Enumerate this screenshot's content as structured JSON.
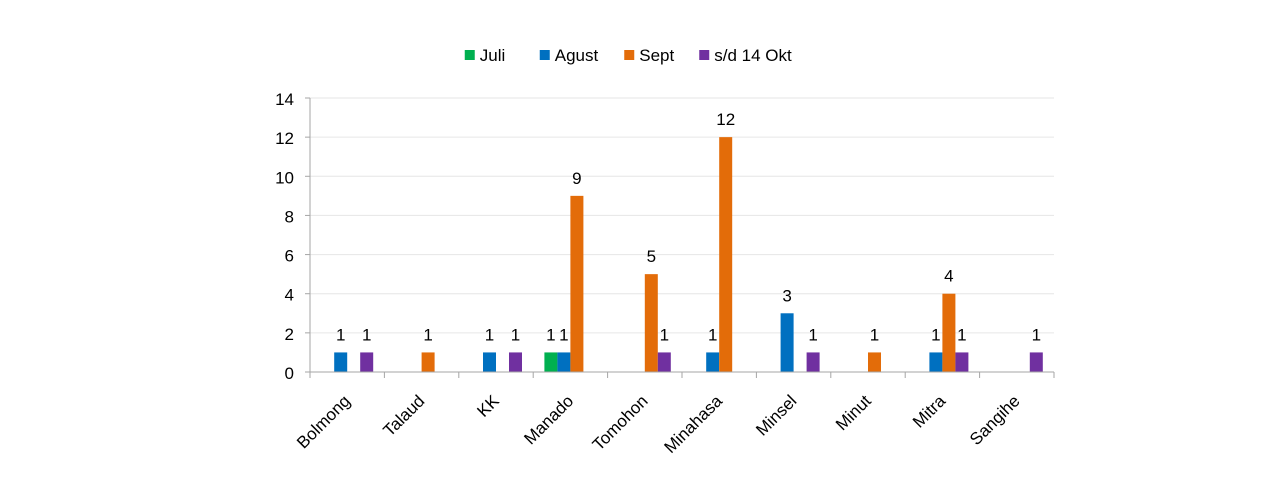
{
  "chart_data": {
    "type": "bar",
    "title": "",
    "xlabel": "",
    "ylabel": "",
    "ylim": [
      0,
      14
    ],
    "yticks": [
      0,
      2,
      4,
      6,
      8,
      10,
      12,
      14
    ],
    "grid": true,
    "legend_position": "top",
    "categories": [
      "Bolmong",
      "Talaud",
      "KK",
      "Manado",
      "Tomohon",
      "Minahasa",
      "Minsel",
      "Minut",
      "Mitra",
      "Sangihe"
    ],
    "series": [
      {
        "name": "Juli",
        "color": "#00B050",
        "values": [
          null,
          null,
          null,
          1,
          null,
          null,
          null,
          null,
          null,
          null
        ]
      },
      {
        "name": "Agust",
        "color": "#0070C0",
        "values": [
          1,
          null,
          1,
          1,
          null,
          1,
          3,
          null,
          1,
          null
        ]
      },
      {
        "name": "Sept",
        "color": "#E36C09",
        "values": [
          null,
          1,
          null,
          9,
          5,
          12,
          null,
          1,
          4,
          null
        ]
      },
      {
        "name": "s/d 14 Okt",
        "color": "#7030A0",
        "values": [
          1,
          null,
          1,
          null,
          1,
          null,
          1,
          null,
          1,
          1
        ]
      }
    ]
  }
}
